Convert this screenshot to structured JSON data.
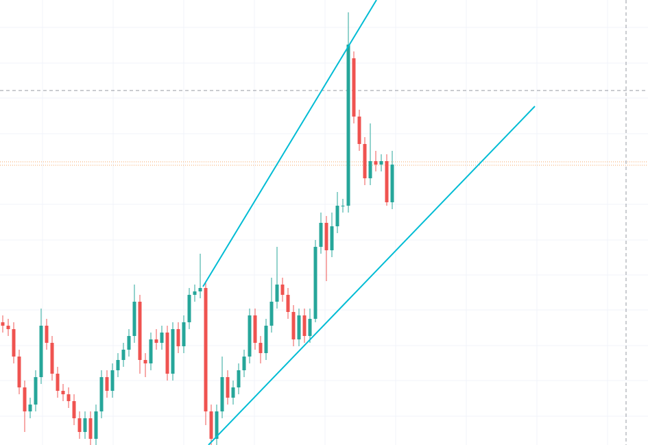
{
  "chart_data": {
    "type": "candlestick",
    "open": [
      179,
      174,
      169,
      129,
      84,
      49,
      59,
      99,
      174,
      149,
      104,
      79,
      74,
      64,
      39,
      19,
      39,
      9,
      49,
      99,
      79,
      109,
      124,
      139,
      159,
      209,
      124,
      119,
      154,
      149,
      164,
      104,
      169,
      144,
      179,
      219,
      224,
      229,
      49,
      9,
      49,
      99,
      69,
      84,
      109,
      129,
      189,
      149,
      134,
      174,
      209,
      234,
      219,
      194,
      154,
      189,
      159,
      184,
      289,
      324,
      284,
      319,
      349,
      349,
      564,
      479,
      439,
      389,
      414,
      409,
      414,
      354
    ],
    "high": [
      189,
      184,
      179,
      139,
      94,
      69,
      109,
      199,
      184,
      159,
      114,
      89,
      84,
      74,
      49,
      49,
      49,
      59,
      109,
      109,
      119,
      134,
      149,
      169,
      234,
      219,
      134,
      164,
      169,
      174,
      174,
      179,
      179,
      189,
      229,
      234,
      279,
      239,
      59,
      59,
      129,
      109,
      94,
      119,
      139,
      199,
      199,
      159,
      184,
      244,
      289,
      244,
      229,
      204,
      199,
      199,
      199,
      299,
      339,
      334,
      339,
      369,
      359,
      631,
      574,
      489,
      449,
      469,
      429,
      424,
      424,
      429
    ],
    "low": [
      164,
      159,
      119,
      74,
      19,
      39,
      49,
      89,
      139,
      94,
      69,
      64,
      54,
      29,
      9,
      9,
      0,
      0,
      39,
      69,
      69,
      99,
      114,
      129,
      149,
      104,
      99,
      109,
      139,
      139,
      94,
      94,
      134,
      134,
      169,
      209,
      214,
      29,
      0,
      0,
      39,
      59,
      59,
      74,
      99,
      119,
      139,
      119,
      124,
      164,
      199,
      209,
      184,
      144,
      144,
      149,
      149,
      179,
      279,
      239,
      274,
      309,
      339,
      339,
      469,
      429,
      379,
      379,
      399,
      399,
      349,
      344
    ],
    "close": [
      174,
      169,
      129,
      84,
      49,
      59,
      99,
      174,
      149,
      104,
      79,
      74,
      64,
      39,
      19,
      39,
      9,
      49,
      99,
      79,
      109,
      124,
      139,
      159,
      209,
      124,
      119,
      154,
      149,
      164,
      104,
      169,
      144,
      179,
      219,
      224,
      229,
      49,
      9,
      49,
      99,
      69,
      84,
      109,
      129,
      189,
      149,
      134,
      174,
      209,
      234,
      219,
      194,
      154,
      189,
      159,
      184,
      289,
      324,
      284,
      319,
      349,
      349,
      584,
      479,
      439,
      389,
      414,
      409,
      414,
      354,
      409
    ],
    "ylim": [
      0,
      649
    ],
    "up_color": "#26a69a",
    "down_color": "#ef5350"
  }
}
